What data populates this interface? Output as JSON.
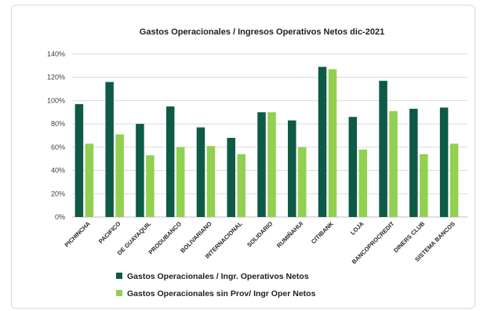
{
  "chart_data": {
    "type": "bar",
    "title": "Gastos Operacionales / Ingresos Operativos Netos  dic-2021",
    "xlabel": "",
    "ylabel": "",
    "ylim": [
      0,
      140
    ],
    "y_ticks": [
      "0%",
      "20%",
      "40%",
      "60%",
      "80%",
      "100%",
      "120%",
      "140%"
    ],
    "grid": true,
    "legend_position": "bottom-left",
    "categories": [
      "PICHINCHA",
      "PACIFICO",
      "DE GUAYAQUIL",
      "PRODUBANCO",
      "BOLIVARIANO",
      "INTERNACIONAL",
      "SOLIDARIO",
      "RUMIÑAHUI",
      "CITIBANK",
      "LOJA",
      "BANCOPROCREDIT",
      "DINERS CLUB",
      "SISTEMA BANCOS"
    ],
    "series": [
      {
        "name": "Gastos Operacionales / Ingr. Operativos Netos",
        "color": "#0d5a47",
        "values": [
          97,
          116,
          80,
          95,
          77,
          68,
          90,
          83,
          129,
          86,
          117,
          93,
          94
        ]
      },
      {
        "name": "Gastos Operacionales sin Prov/ Ingr Oper Netos",
        "color": "#92d050",
        "values": [
          63,
          71,
          53,
          60,
          61,
          54,
          90,
          60,
          127,
          58,
          91,
          54,
          63
        ]
      }
    ],
    "gridline_color": "#d9d9d9"
  }
}
